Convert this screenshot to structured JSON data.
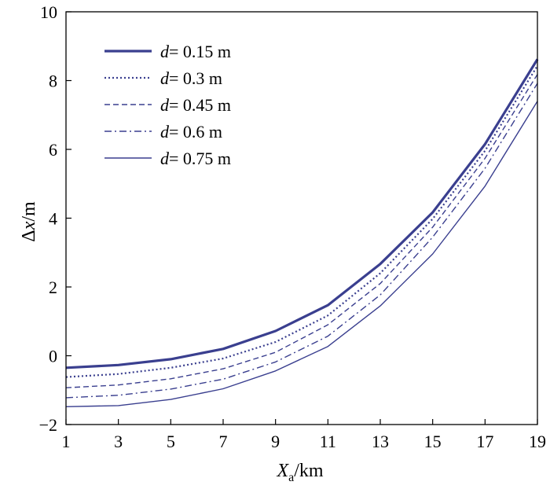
{
  "chart_data": {
    "type": "line",
    "xlabel": {
      "main": "X",
      "sub": "a",
      "unit": "/km"
    },
    "ylabel": {
      "prefix": "Δ",
      "var": "x",
      "unit": "/m"
    },
    "xlim": [
      1,
      19
    ],
    "ylim": [
      -2,
      10
    ],
    "xticks": [
      "1",
      "3",
      "5",
      "7",
      "9",
      "11",
      "13",
      "15",
      "17",
      "19"
    ],
    "yticks": [
      "−2",
      "0",
      "2",
      "4",
      "6",
      "8",
      "10"
    ],
    "grid": false,
    "legend_position": "top-left",
    "line_color": "#3a3f8f",
    "x": [
      1,
      3,
      5,
      7,
      9,
      11,
      13,
      15,
      17,
      19
    ],
    "series": [
      {
        "name": "d = 0.15 m",
        "var": "d",
        "value": "= 0.15 m",
        "style": "solid-thick",
        "values": [
          -0.35,
          -0.27,
          -0.1,
          0.2,
          0.72,
          1.47,
          2.67,
          4.17,
          6.15,
          8.62
        ]
      },
      {
        "name": "d = 0.3 m",
        "var": "d",
        "value": "= 0.3 m",
        "style": "dotted",
        "values": [
          -0.62,
          -0.53,
          -0.35,
          -0.08,
          0.4,
          1.17,
          2.4,
          3.98,
          5.96,
          8.43
        ]
      },
      {
        "name": "d = 0.45 m",
        "var": "d",
        "value": "= 0.45 m",
        "style": "dashed",
        "values": [
          -0.93,
          -0.85,
          -0.67,
          -0.38,
          0.1,
          0.9,
          2.1,
          3.74,
          5.74,
          8.18
        ]
      },
      {
        "name": "d = 0.6 m",
        "var": "d",
        "value": "= 0.6 m",
        "style": "dashdot",
        "values": [
          -1.22,
          -1.15,
          -0.97,
          -0.68,
          -0.18,
          0.57,
          1.77,
          3.45,
          5.45,
          7.92
        ]
      },
      {
        "name": "d = 0.75 m",
        "var": "d",
        "value": "= 0.75 m",
        "style": "solid-thin",
        "values": [
          -1.48,
          -1.45,
          -1.27,
          -0.96,
          -0.44,
          0.27,
          1.45,
          2.96,
          4.93,
          7.4
        ]
      }
    ]
  }
}
